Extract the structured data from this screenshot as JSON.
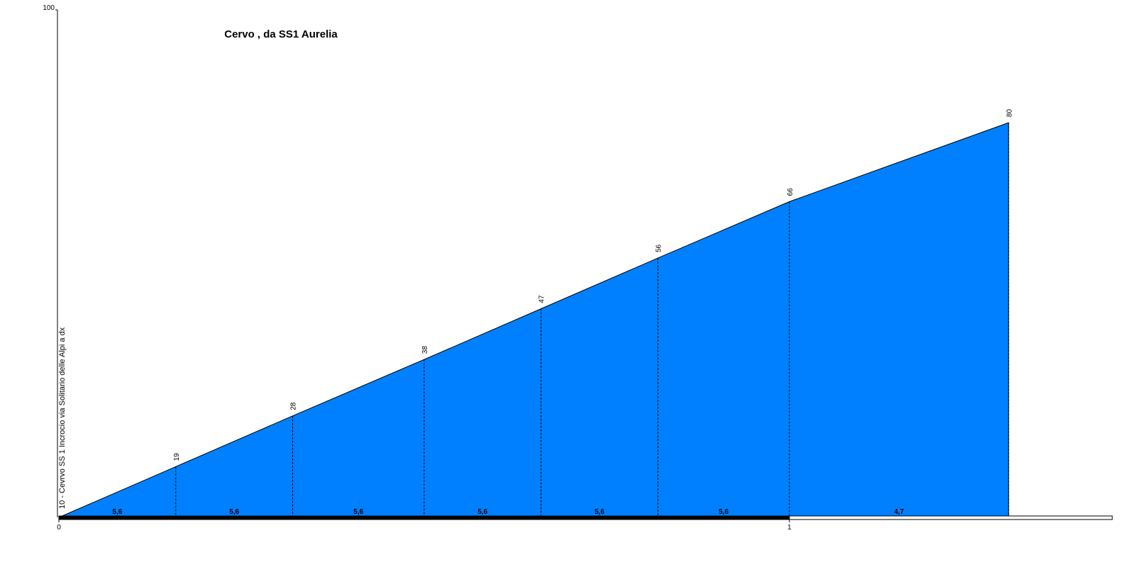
{
  "chart_data": {
    "type": "area",
    "title": "Cervo , da SS1 Aurelia",
    "start_label": "10 - Cevrvo SS 1 Incrocio via Solitario delle Alpi a dx",
    "x": [
      0,
      0.16,
      0.32,
      0.5,
      0.66,
      0.82,
      1.0,
      1.3
    ],
    "values": [
      10,
      19,
      28,
      38,
      47,
      56,
      66,
      80
    ],
    "color": "#0080ff",
    "segment_grades": {
      "values": [
        5.6,
        5.6,
        5.6,
        5.6,
        5.6,
        5.6,
        4.7
      ],
      "value_labels": [
        "5,6",
        "5,6",
        "5,6",
        "5,6",
        "5,6",
        "5,6",
        "4,7"
      ]
    },
    "xlim": [
      0,
      1.442
    ],
    "xticks": [
      0,
      1
    ],
    "ylim": [
      10,
      100
    ],
    "yticks": [
      100
    ]
  }
}
